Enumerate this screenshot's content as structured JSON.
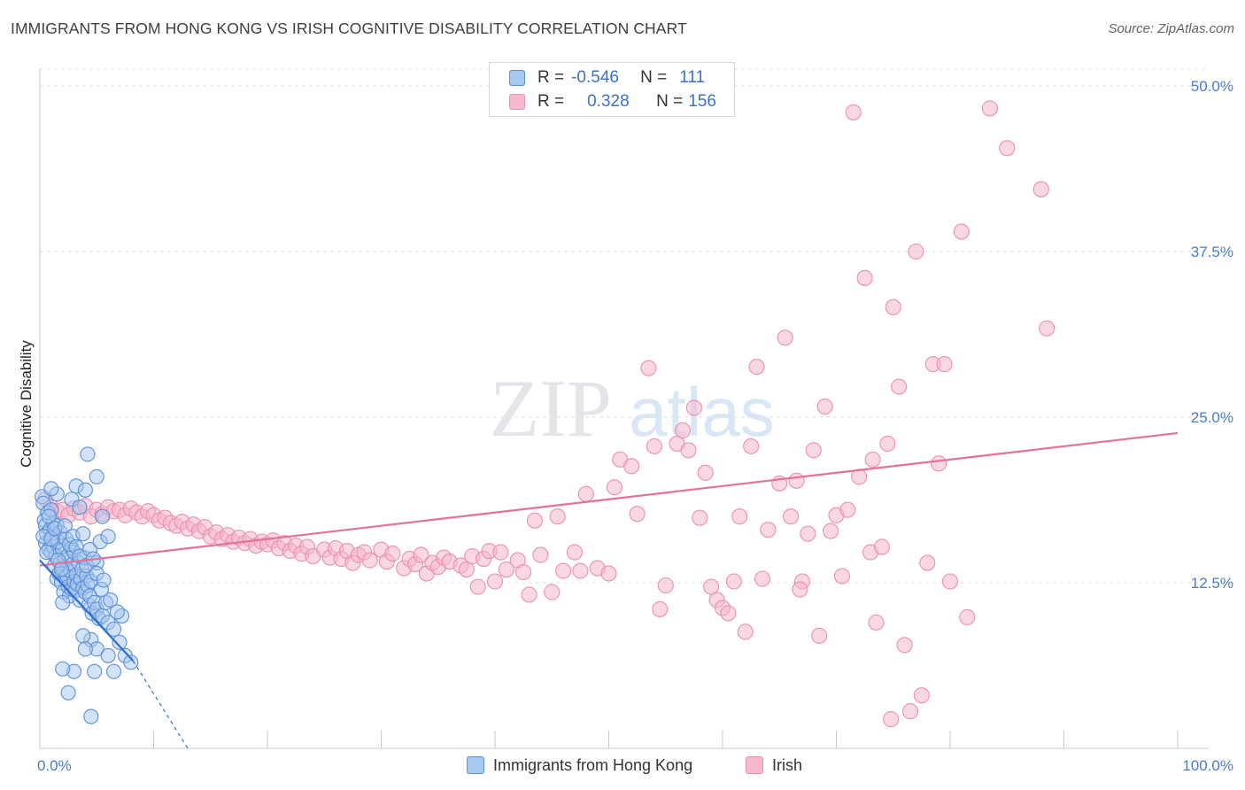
{
  "title": "IMMIGRANTS FROM HONG KONG VS IRISH COGNITIVE DISABILITY CORRELATION CHART",
  "source": "Source: ZipAtlas.com",
  "watermark": {
    "zip": "ZIP",
    "atlas": "atlas"
  },
  "legend": {
    "r_label": "R =",
    "n_label": "N =",
    "series": [
      {
        "name": "Immigrants from Hong Kong",
        "r": "-0.546",
        "n": "111"
      },
      {
        "name": "Irish",
        "r": "0.328",
        "n": "156"
      }
    ]
  },
  "colors": {
    "blue_fill": "#a8c8f0",
    "blue_stroke": "#5b8fd6",
    "blue_line": "#2d6fd1",
    "pink_fill": "#f6b8cc",
    "pink_stroke": "#eb8fae",
    "pink_line": "#e4719a",
    "tick_text": "#4a7cc9",
    "grid": "#dadce0"
  },
  "chart_data": {
    "type": "scatter",
    "title": "IMMIGRANTS FROM HONG KONG VS IRISH COGNITIVE DISABILITY CORRELATION CHART",
    "xlabel": "",
    "ylabel": "Cognitive Disability",
    "xlim": [
      0,
      100
    ],
    "ylim": [
      0,
      50
    ],
    "x_tick_labels": [
      "0.0%",
      "100.0%"
    ],
    "y_ticks": [
      12.5,
      25.0,
      37.5,
      50.0
    ],
    "y_tick_labels": [
      "12.5%",
      "25.0%",
      "37.5%",
      "50.0%"
    ],
    "grid": true,
    "series": [
      {
        "name": "Immigrants from Hong Kong",
        "r": -0.546,
        "n": 111,
        "trend": {
          "x0": 0,
          "y0": 14.2,
          "x1": 8.2,
          "y1": 6.6,
          "dash_to_x": 13.0,
          "dash_to_y": 0
        },
        "points": [
          [
            0.2,
            19.0
          ],
          [
            0.3,
            18.5
          ],
          [
            0.4,
            17.2
          ],
          [
            0.5,
            16.8
          ],
          [
            0.5,
            15.5
          ],
          [
            0.6,
            16.2
          ],
          [
            0.7,
            17.8
          ],
          [
            0.8,
            15.0
          ],
          [
            0.9,
            16.5
          ],
          [
            1.0,
            14.8
          ],
          [
            1.0,
            18.0
          ],
          [
            1.1,
            16.0
          ],
          [
            1.2,
            15.2
          ],
          [
            1.2,
            17.0
          ],
          [
            1.3,
            13.8
          ],
          [
            1.4,
            14.5
          ],
          [
            1.5,
            16.8
          ],
          [
            1.5,
            12.8
          ],
          [
            1.6,
            15.6
          ],
          [
            1.7,
            13.2
          ],
          [
            1.8,
            14.0
          ],
          [
            1.8,
            16.3
          ],
          [
            1.9,
            12.5
          ],
          [
            2.0,
            15.0
          ],
          [
            2.0,
            13.6
          ],
          [
            2.1,
            11.8
          ],
          [
            2.2,
            14.2
          ],
          [
            2.3,
            12.9
          ],
          [
            2.3,
            15.8
          ],
          [
            2.4,
            13.0
          ],
          [
            2.5,
            12.2
          ],
          [
            2.5,
            14.6
          ],
          [
            2.6,
            11.5
          ],
          [
            2.7,
            13.4
          ],
          [
            2.8,
            12.0
          ],
          [
            2.8,
            15.1
          ],
          [
            2.9,
            13.9
          ],
          [
            3.0,
            12.6
          ],
          [
            3.0,
            14.8
          ],
          [
            3.1,
            11.9
          ],
          [
            3.2,
            13.1
          ],
          [
            3.3,
            12.4
          ],
          [
            3.4,
            14.0
          ],
          [
            3.5,
            11.2
          ],
          [
            3.6,
            12.8
          ],
          [
            3.7,
            13.5
          ],
          [
            3.8,
            12.1
          ],
          [
            3.9,
            14.4
          ],
          [
            4.0,
            11.8
          ],
          [
            4.1,
            13.0
          ],
          [
            4.2,
            12.3
          ],
          [
            4.3,
            10.8
          ],
          [
            4.4,
            11.5
          ],
          [
            4.5,
            12.6
          ],
          [
            4.6,
            10.2
          ],
          [
            4.8,
            11.0
          ],
          [
            5.0,
            10.5
          ],
          [
            5.0,
            14.0
          ],
          [
            5.2,
            9.8
          ],
          [
            5.4,
            12.0
          ],
          [
            5.5,
            10.0
          ],
          [
            5.8,
            11.0
          ],
          [
            6.0,
            9.5
          ],
          [
            0.3,
            16.0
          ],
          [
            0.6,
            14.8
          ],
          [
            0.8,
            17.5
          ],
          [
            1.0,
            15.8
          ],
          [
            1.3,
            16.6
          ],
          [
            1.6,
            14.2
          ],
          [
            1.9,
            13.5
          ],
          [
            2.2,
            16.8
          ],
          [
            2.6,
            15.4
          ],
          [
            2.9,
            16.0
          ],
          [
            3.2,
            15.2
          ],
          [
            3.5,
            14.5
          ],
          [
            3.8,
            16.2
          ],
          [
            4.1,
            13.8
          ],
          [
            4.4,
            15.0
          ],
          [
            4.7,
            14.3
          ],
          [
            5.0,
            13.2
          ],
          [
            5.3,
            15.6
          ],
          [
            5.6,
            12.7
          ],
          [
            6.2,
            11.2
          ],
          [
            6.5,
            9.0
          ],
          [
            7.0,
            8.0
          ],
          [
            7.5,
            7.0
          ],
          [
            8.0,
            6.5
          ],
          [
            3.0,
            5.8
          ],
          [
            2.0,
            6.0
          ],
          [
            4.5,
            8.2
          ],
          [
            5.0,
            7.5
          ],
          [
            6.0,
            7.0
          ],
          [
            2.5,
            4.2
          ],
          [
            4.5,
            2.4
          ],
          [
            3.2,
            19.8
          ],
          [
            4.0,
            19.5
          ],
          [
            5.5,
            17.5
          ],
          [
            6.0,
            16.0
          ],
          [
            1.5,
            19.2
          ],
          [
            2.8,
            18.8
          ],
          [
            3.5,
            18.2
          ],
          [
            4.2,
            22.2
          ],
          [
            5.0,
            20.5
          ],
          [
            6.5,
            5.8
          ],
          [
            3.8,
            8.5
          ],
          [
            4.8,
            5.8
          ],
          [
            4.0,
            7.5
          ],
          [
            7.2,
            10.0
          ],
          [
            6.8,
            10.3
          ],
          [
            1.0,
            19.6
          ],
          [
            2.0,
            11.0
          ]
        ]
      },
      {
        "name": "Irish",
        "r": 0.328,
        "n": 156,
        "trend": {
          "x0": 0,
          "y0": 13.8,
          "x1": 100,
          "y1": 23.8
        },
        "points": [
          [
            0.5,
            18.8
          ],
          [
            1.0,
            18.2
          ],
          [
            1.5,
            17.9
          ],
          [
            2.0,
            18.0
          ],
          [
            2.5,
            17.6
          ],
          [
            3.0,
            18.1
          ],
          [
            3.5,
            17.8
          ],
          [
            4.0,
            18.3
          ],
          [
            4.5,
            17.5
          ],
          [
            5.0,
            18.0
          ],
          [
            5.5,
            17.7
          ],
          [
            6.0,
            18.2
          ],
          [
            6.5,
            17.9
          ],
          [
            7.0,
            18.0
          ],
          [
            7.5,
            17.6
          ],
          [
            8.0,
            18.1
          ],
          [
            8.5,
            17.8
          ],
          [
            9.0,
            17.5
          ],
          [
            9.5,
            17.9
          ],
          [
            10.0,
            17.6
          ],
          [
            10.5,
            17.2
          ],
          [
            11.0,
            17.4
          ],
          [
            11.5,
            17.0
          ],
          [
            12.0,
            16.8
          ],
          [
            12.5,
            17.1
          ],
          [
            13.0,
            16.6
          ],
          [
            13.5,
            16.9
          ],
          [
            14.0,
            16.4
          ],
          [
            14.5,
            16.7
          ],
          [
            15.0,
            16.0
          ],
          [
            15.5,
            16.3
          ],
          [
            16.0,
            15.8
          ],
          [
            16.5,
            16.1
          ],
          [
            17.0,
            15.6
          ],
          [
            17.5,
            15.9
          ],
          [
            18.0,
            15.5
          ],
          [
            18.5,
            15.8
          ],
          [
            19.0,
            15.3
          ],
          [
            19.5,
            15.6
          ],
          [
            20.0,
            15.4
          ],
          [
            20.5,
            15.7
          ],
          [
            21.0,
            15.1
          ],
          [
            21.5,
            15.5
          ],
          [
            22.0,
            14.9
          ],
          [
            22.5,
            15.3
          ],
          [
            23.0,
            14.7
          ],
          [
            23.5,
            15.2
          ],
          [
            24.0,
            14.5
          ],
          [
            25.0,
            15.0
          ],
          [
            25.5,
            14.4
          ],
          [
            26.0,
            15.1
          ],
          [
            26.5,
            14.3
          ],
          [
            27.0,
            14.9
          ],
          [
            27.5,
            14.0
          ],
          [
            28.0,
            14.6
          ],
          [
            28.5,
            14.8
          ],
          [
            29.0,
            14.2
          ],
          [
            30.0,
            15.0
          ],
          [
            30.5,
            14.1
          ],
          [
            31.0,
            14.7
          ],
          [
            32.0,
            13.6
          ],
          [
            32.5,
            14.3
          ],
          [
            33.0,
            13.9
          ],
          [
            33.5,
            14.6
          ],
          [
            34.0,
            13.2
          ],
          [
            34.5,
            14.0
          ],
          [
            35.0,
            13.7
          ],
          [
            35.5,
            14.4
          ],
          [
            36.0,
            14.1
          ],
          [
            37.0,
            13.8
          ],
          [
            37.5,
            13.5
          ],
          [
            38.0,
            14.5
          ],
          [
            38.5,
            12.2
          ],
          [
            39.0,
            14.3
          ],
          [
            39.5,
            14.9
          ],
          [
            40.0,
            12.6
          ],
          [
            40.5,
            14.8
          ],
          [
            41.0,
            13.5
          ],
          [
            42.0,
            14.2
          ],
          [
            42.5,
            13.3
          ],
          [
            43.0,
            11.6
          ],
          [
            43.5,
            17.2
          ],
          [
            44.0,
            14.6
          ],
          [
            45.0,
            11.8
          ],
          [
            45.5,
            17.5
          ],
          [
            46.0,
            13.4
          ],
          [
            47.0,
            14.8
          ],
          [
            47.5,
            13.4
          ],
          [
            48.0,
            19.2
          ],
          [
            49.0,
            13.6
          ],
          [
            50.0,
            13.2
          ],
          [
            50.5,
            19.7
          ],
          [
            51.0,
            21.8
          ],
          [
            52.0,
            21.3
          ],
          [
            52.5,
            17.7
          ],
          [
            53.5,
            28.7
          ],
          [
            54.0,
            22.8
          ],
          [
            54.5,
            10.5
          ],
          [
            55.0,
            12.3
          ],
          [
            56.0,
            23.0
          ],
          [
            56.5,
            24.0
          ],
          [
            57.0,
            22.5
          ],
          [
            57.5,
            25.7
          ],
          [
            58.0,
            17.4
          ],
          [
            58.5,
            20.8
          ],
          [
            59.0,
            12.2
          ],
          [
            59.5,
            11.2
          ],
          [
            60.0,
            10.6
          ],
          [
            60.5,
            10.2
          ],
          [
            61.0,
            12.6
          ],
          [
            61.5,
            17.5
          ],
          [
            62.0,
            8.8
          ],
          [
            62.5,
            22.8
          ],
          [
            63.0,
            28.8
          ],
          [
            63.5,
            12.8
          ],
          [
            64.0,
            16.5
          ],
          [
            65.0,
            20.0
          ],
          [
            65.5,
            31.0
          ],
          [
            66.0,
            17.5
          ],
          [
            66.5,
            20.2
          ],
          [
            67.0,
            12.6
          ],
          [
            67.5,
            16.2
          ],
          [
            68.0,
            22.5
          ],
          [
            68.5,
            8.5
          ],
          [
            69.0,
            25.8
          ],
          [
            69.5,
            16.4
          ],
          [
            70.0,
            17.6
          ],
          [
            70.5,
            13.0
          ],
          [
            71.0,
            18.0
          ],
          [
            71.5,
            48.0
          ],
          [
            72.0,
            20.5
          ],
          [
            72.5,
            35.5
          ],
          [
            73.0,
            14.8
          ],
          [
            73.5,
            9.5
          ],
          [
            74.0,
            15.2
          ],
          [
            74.5,
            23.0
          ],
          [
            75.0,
            33.3
          ],
          [
            75.5,
            27.3
          ],
          [
            76.0,
            7.8
          ],
          [
            76.5,
            2.8
          ],
          [
            77.0,
            37.5
          ],
          [
            77.5,
            4.0
          ],
          [
            78.0,
            14.0
          ],
          [
            78.5,
            29.0
          ],
          [
            79.0,
            21.5
          ],
          [
            79.5,
            29.0
          ],
          [
            80.0,
            12.6
          ],
          [
            81.0,
            39.0
          ],
          [
            81.5,
            9.9
          ],
          [
            83.5,
            48.3
          ],
          [
            85.0,
            45.3
          ],
          [
            88.0,
            42.2
          ],
          [
            88.5,
            31.7
          ],
          [
            74.8,
            2.2
          ],
          [
            73.2,
            21.8
          ],
          [
            66.8,
            12.0
          ]
        ]
      }
    ]
  }
}
